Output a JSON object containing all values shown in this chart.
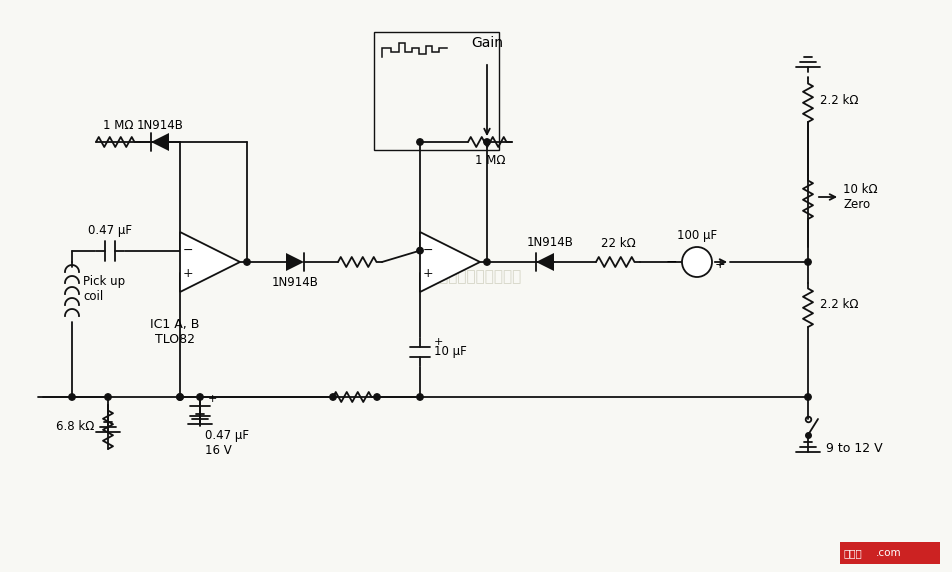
{
  "bg_color": "#f8f8f4",
  "line_color": "#111111",
  "fig_width": 9.52,
  "fig_height": 5.72,
  "dpi": 100,
  "labels": {
    "gain": "Gain",
    "r1": "1 MΩ",
    "r2": "1 MΩ",
    "r3": "22 kΩ",
    "r4": "6.8 kΩ",
    "r5_top": "2.2 kΩ",
    "r5_bot": "2.2 kΩ",
    "r6": "10 kΩ\nZero",
    "c1": "0.47 μF",
    "c2": "0.47 μF\n16 V",
    "c3": "100 μF",
    "c4": "10 μF",
    "d1": "1N914B",
    "d2": "1N914B",
    "d3": "1N914B",
    "coil": "Pick up\ncoil",
    "ic": "IC1 A, B\nTLO82",
    "power": "9 to 12 V"
  }
}
